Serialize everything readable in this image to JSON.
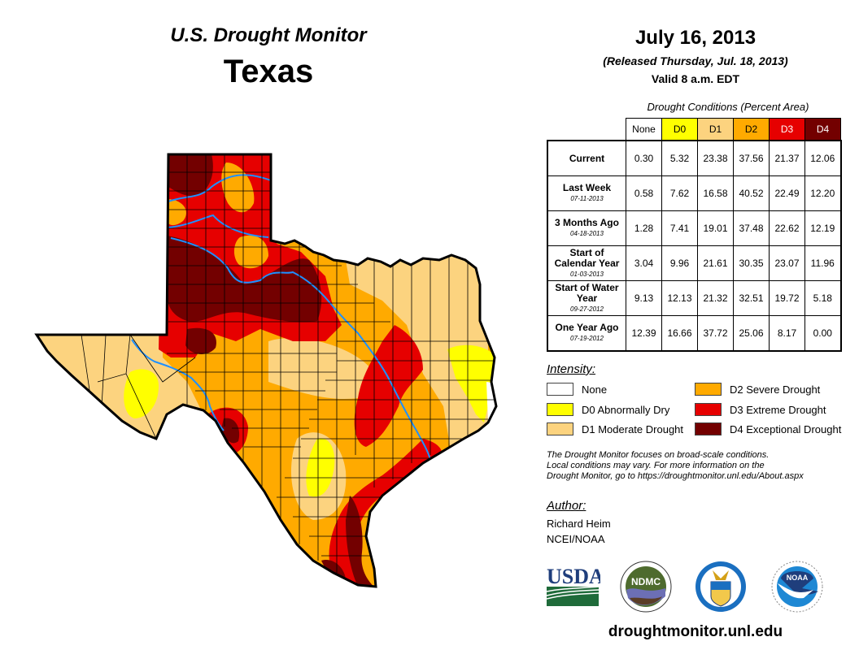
{
  "header": {
    "title": "U.S. Drought Monitor",
    "state": "Texas",
    "date": "July 16, 2013",
    "released": "(Released Thursday, Jul. 18, 2013)",
    "valid": "Valid 8 a.m. EDT"
  },
  "table": {
    "caption": "Drought Conditions (Percent Area)",
    "columns": [
      "None",
      "D0",
      "D1",
      "D2",
      "D3",
      "D4"
    ],
    "column_colors": [
      "#ffffff",
      "#ffff00",
      "#fcd37f",
      "#ffaa00",
      "#e60000",
      "#730000"
    ],
    "column_text_colors": [
      "#000000",
      "#000000",
      "#000000",
      "#000000",
      "#ffffff",
      "#ffffff"
    ],
    "rows": [
      {
        "label": "Current",
        "date": "",
        "values": [
          "0.30",
          "5.32",
          "23.38",
          "37.56",
          "21.37",
          "12.06"
        ]
      },
      {
        "label": "Last Week",
        "date": "07-11-2013",
        "values": [
          "0.58",
          "7.62",
          "16.58",
          "40.52",
          "22.49",
          "12.20"
        ]
      },
      {
        "label": "3 Months Ago",
        "date": "04-18-2013",
        "values": [
          "1.28",
          "7.41",
          "19.01",
          "37.48",
          "22.62",
          "12.19"
        ]
      },
      {
        "label": "Start of Calendar Year",
        "date": "01-03-2013",
        "values": [
          "3.04",
          "9.96",
          "21.61",
          "30.35",
          "23.07",
          "11.96"
        ]
      },
      {
        "label": "Start of Water Year",
        "date": "09-27-2012",
        "values": [
          "9.13",
          "12.13",
          "21.32",
          "32.51",
          "19.72",
          "5.18"
        ]
      },
      {
        "label": "One Year Ago",
        "date": "07-19-2012",
        "values": [
          "12.39",
          "16.66",
          "37.72",
          "25.06",
          "8.17",
          "0.00"
        ]
      }
    ]
  },
  "legend": {
    "title": "Intensity:",
    "items": [
      {
        "label": "None",
        "color": "#ffffff"
      },
      {
        "label": "D0 Abnormally Dry",
        "color": "#ffff00"
      },
      {
        "label": "D1 Moderate Drought",
        "color": "#fcd37f"
      },
      {
        "label": "D2 Severe Drought",
        "color": "#ffaa00"
      },
      {
        "label": "D3 Extreme Drought",
        "color": "#e60000"
      },
      {
        "label": "D4 Exceptional Drought",
        "color": "#730000"
      }
    ]
  },
  "note": {
    "line1": "The Drought Monitor focuses on broad-scale conditions.",
    "line2": "Local conditions may vary. For more information on the",
    "line3": "Drought Monitor, go to https://droughtmonitor.unl.edu/About.aspx"
  },
  "author": {
    "label": "Author:",
    "name": "Richard Heim",
    "org": "NCEI/NOAA"
  },
  "logos": {
    "usda": "USDA",
    "ndmc": "NDMC",
    "noaa": "NOAA"
  },
  "footer": {
    "url": "droughtmonitor.unl.edu"
  },
  "colors": {
    "river": "#1e90ff",
    "border": "#000000"
  }
}
